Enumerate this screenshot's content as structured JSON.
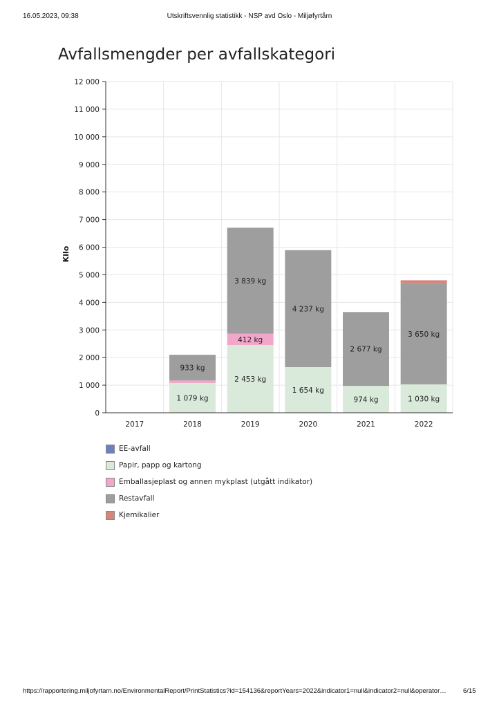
{
  "header": {
    "datetime": "16.05.2023, 09:38",
    "title": "Utskriftsvennlig statistikk - NSP avd Oslo - Miljøfyrtårn"
  },
  "footer": {
    "url": "https://rapportering.miljofyrtarn.no/EnvironmentalReport/PrintStatistics?id=154136&reportYears=2022&indicator1=null&indicator2=null&operator…",
    "page": "6/15"
  },
  "chart_data": {
    "type": "bar",
    "stacked": true,
    "title": "Avfallsmengder per avfallskategori",
    "xlabel": "",
    "ylabel": "Kilo",
    "ylim": [
      0,
      12000
    ],
    "yticks": [
      0,
      1000,
      2000,
      3000,
      4000,
      5000,
      6000,
      7000,
      8000,
      9000,
      10000,
      11000,
      12000
    ],
    "ytick_labels": [
      "0",
      "1 000",
      "2 000",
      "3 000",
      "4 000",
      "5 000",
      "6 000",
      "7 000",
      "8 000",
      "9 000",
      "10 000",
      "11 000",
      "12 000"
    ],
    "categories": [
      "2017",
      "2018",
      "2019",
      "2020",
      "2021",
      "2022"
    ],
    "grid": true,
    "legend_position": "bottom",
    "series": [
      {
        "name": "EE-avfall",
        "color": "#6b80bd",
        "values": [
          0,
          0,
          0,
          0,
          0,
          0
        ],
        "labels": [
          "",
          "",
          "",
          "",
          "",
          ""
        ]
      },
      {
        "name": "Papir, papp og kartong",
        "color": "#d9eadb",
        "values": [
          0,
          1079,
          2453,
          1654,
          974,
          1030
        ],
        "labels": [
          "",
          "1 079 kg",
          "2 453 kg",
          "1 654 kg",
          "974 kg",
          "1 030 kg"
        ]
      },
      {
        "name": "Emballasjeplast og annen mykplast (utgått indikator)",
        "color": "#f2a6c9",
        "values": [
          0,
          90,
          412,
          0,
          0,
          0
        ],
        "labels": [
          "",
          "",
          "412 kg",
          "",
          "",
          ""
        ]
      },
      {
        "name": "Restavfall",
        "color": "#9e9e9e",
        "values": [
          0,
          933,
          3839,
          4237,
          2677,
          3650
        ],
        "labels": [
          "",
          "933 kg",
          "3 839 kg",
          "4 237 kg",
          "2 677 kg",
          "3 650 kg"
        ]
      },
      {
        "name": "Kjemikalier",
        "color": "#d4867a",
        "values": [
          0,
          0,
          0,
          0,
          0,
          120
        ],
        "labels": [
          "",
          "",
          "",
          "",
          "",
          ""
        ]
      }
    ]
  }
}
